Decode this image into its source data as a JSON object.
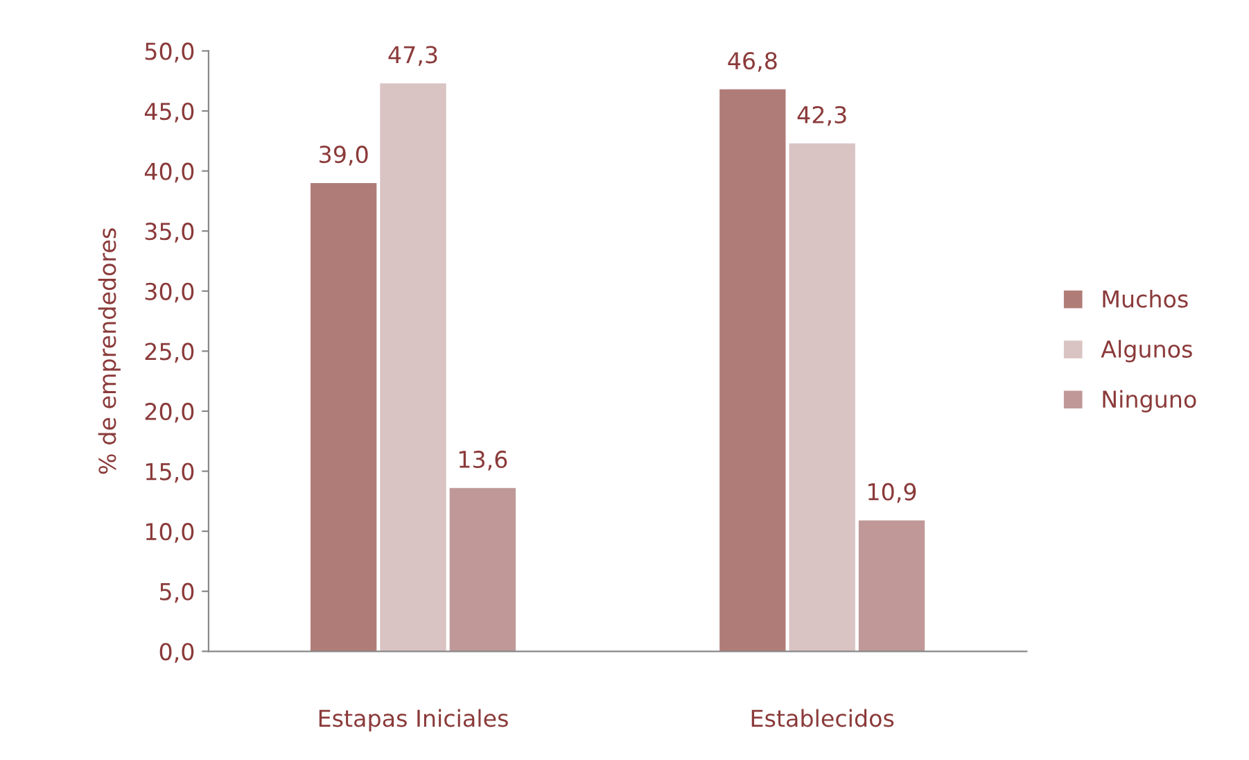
{
  "chart_data": {
    "type": "bar",
    "ylabel": "% de emprendedores",
    "categories": [
      "Estapas Iniciales",
      "Establecidos"
    ],
    "series": [
      {
        "name": "Muchos",
        "color": "#b07c78",
        "values": [
          39.0,
          46.8
        ],
        "value_labels": [
          "39,0",
          "46,8"
        ]
      },
      {
        "name": "Algunos",
        "color": "#d9c3c3",
        "values": [
          47.3,
          42.3
        ],
        "value_labels": [
          "47,3",
          "42,3"
        ]
      },
      {
        "name": "Ninguno",
        "color": "#c09898",
        "values": [
          13.6,
          10.9
        ],
        "value_labels": [
          "13,6",
          "10,9"
        ]
      }
    ],
    "ylim": [
      0,
      50
    ],
    "yticks": [
      {
        "value": 0,
        "label": "0,0"
      },
      {
        "value": 5,
        "label": "5,0"
      },
      {
        "value": 10,
        "label": "10,0"
      },
      {
        "value": 15,
        "label": "15,0"
      },
      {
        "value": 20,
        "label": "20,0"
      },
      {
        "value": 25,
        "label": "25,0"
      },
      {
        "value": 30,
        "label": "30,0"
      },
      {
        "value": 35,
        "label": "35,0"
      },
      {
        "value": 40,
        "label": "40,0"
      },
      {
        "value": 45,
        "label": "45,0"
      },
      {
        "value": 50,
        "label": "50,0"
      }
    ],
    "grid": false,
    "legend": "right"
  }
}
